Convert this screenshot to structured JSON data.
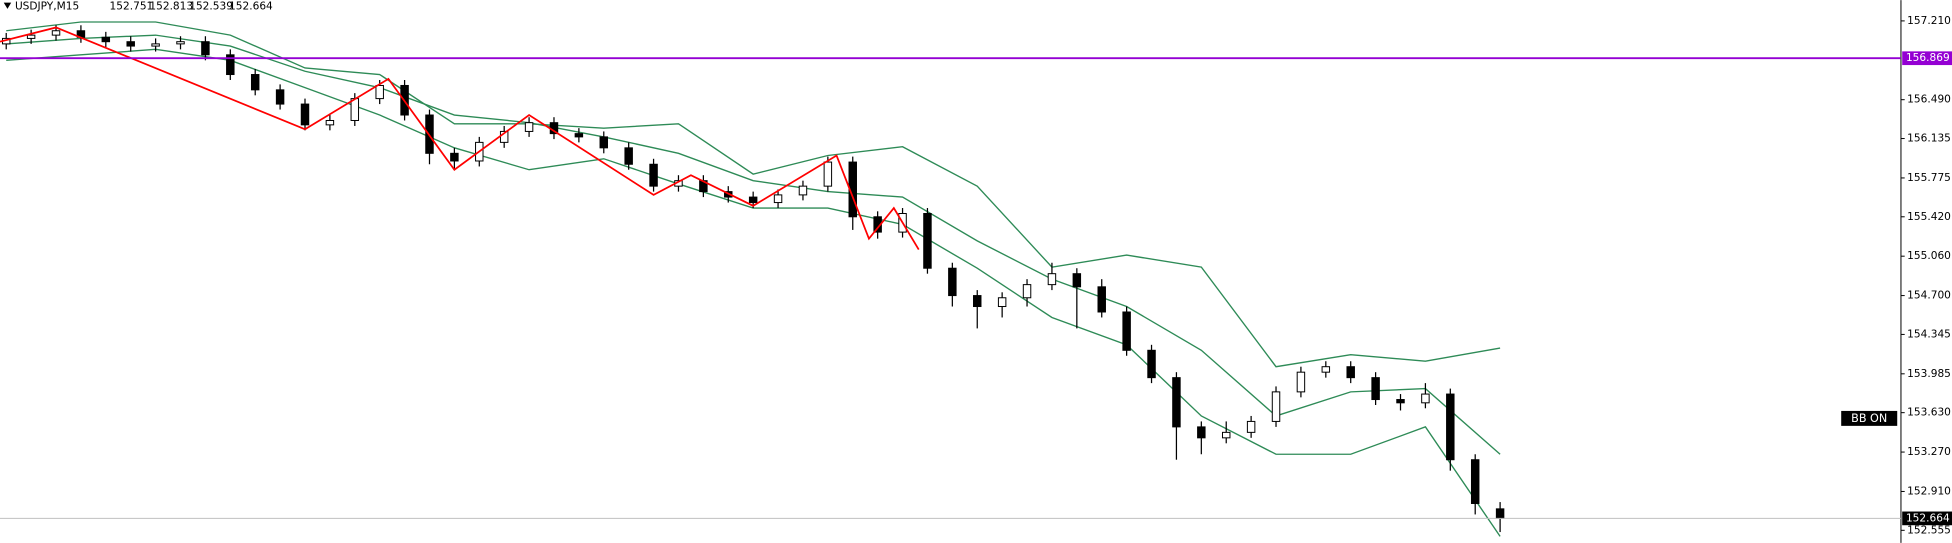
{
  "chart_data": {
    "type": "candlestick",
    "symbol": "USDJPY,M15",
    "open": [
      157.0,
      157.05,
      157.08,
      157.12,
      157.06,
      157.02,
      156.98,
      157.0,
      157.02,
      156.9,
      156.72,
      156.58,
      156.45,
      156.26,
      156.3,
      156.5,
      156.62,
      156.35,
      156.0,
      155.93,
      156.1,
      156.2,
      156.28,
      156.18,
      156.15,
      156.05,
      155.9,
      155.7,
      155.75,
      155.65,
      155.6,
      155.55,
      155.62,
      155.7,
      155.92,
      155.42,
      155.28,
      155.45,
      154.95,
      154.7,
      154.6,
      154.68,
      154.8,
      154.9,
      154.78,
      154.55,
      154.2,
      153.95,
      153.5,
      153.4,
      153.45,
      153.55,
      153.82,
      154.0,
      154.05,
      153.95,
      153.75,
      153.72,
      153.8,
      153.2,
      152.751
    ],
    "high": [
      157.1,
      157.13,
      157.17,
      157.17,
      157.11,
      157.07,
      157.05,
      157.07,
      157.07,
      156.95,
      156.77,
      156.63,
      156.5,
      156.35,
      156.55,
      156.67,
      156.67,
      156.4,
      156.05,
      156.15,
      156.25,
      156.33,
      156.33,
      156.23,
      156.2,
      156.1,
      155.95,
      155.8,
      155.8,
      155.7,
      155.65,
      155.67,
      155.75,
      155.97,
      155.97,
      155.47,
      155.5,
      155.5,
      155.0,
      154.75,
      154.73,
      154.85,
      155.0,
      154.95,
      154.85,
      154.6,
      154.25,
      154.0,
      153.55,
      153.55,
      153.6,
      153.87,
      154.05,
      154.1,
      154.1,
      154.0,
      153.8,
      153.9,
      153.85,
      153.25,
      152.813
    ],
    "low": [
      156.95,
      157.0,
      157.03,
      157.01,
      156.97,
      156.93,
      156.93,
      156.95,
      156.85,
      156.67,
      156.53,
      156.4,
      156.21,
      156.21,
      156.25,
      156.45,
      156.3,
      155.9,
      155.85,
      155.88,
      156.05,
      156.15,
      156.13,
      156.1,
      156.0,
      155.85,
      155.65,
      155.65,
      155.6,
      155.55,
      155.5,
      155.5,
      155.57,
      155.65,
      155.3,
      155.22,
      155.23,
      154.9,
      154.6,
      154.4,
      154.5,
      154.6,
      154.75,
      154.4,
      154.5,
      154.15,
      153.9,
      153.2,
      153.25,
      153.35,
      153.4,
      153.5,
      153.77,
      153.95,
      153.9,
      153.7,
      153.65,
      153.67,
      153.1,
      152.7,
      152.539
    ],
    "close": [
      157.05,
      157.08,
      157.12,
      157.06,
      157.02,
      156.98,
      157.0,
      157.02,
      156.9,
      156.72,
      156.58,
      156.45,
      156.26,
      156.3,
      156.5,
      156.62,
      156.35,
      156.0,
      155.93,
      156.1,
      156.2,
      156.28,
      156.18,
      156.15,
      156.05,
      155.9,
      155.7,
      155.75,
      155.65,
      155.6,
      155.55,
      155.62,
      155.7,
      155.92,
      155.42,
      155.28,
      155.45,
      154.95,
      154.7,
      154.6,
      154.68,
      154.8,
      154.9,
      154.78,
      154.55,
      154.2,
      153.95,
      153.5,
      153.4,
      153.45,
      153.55,
      153.82,
      154.0,
      154.05,
      153.95,
      153.75,
      153.72,
      153.8,
      153.2,
      152.8,
      152.664
    ],
    "bull_color": "#ffffff",
    "bear_color": "#000000",
    "bands": {
      "color": "#2e8b57",
      "x": [
        0,
        3,
        6,
        9,
        12,
        15,
        18,
        21,
        24,
        27,
        30,
        33,
        36,
        39,
        42,
        45,
        48,
        51,
        54,
        57,
        60
      ],
      "upper": [
        157.12,
        157.2,
        157.2,
        157.08,
        156.78,
        156.72,
        156.27,
        156.27,
        156.23,
        156.27,
        155.81,
        155.98,
        156.06,
        155.7,
        154.96,
        155.07,
        154.96,
        154.05,
        154.16,
        154.1,
        154.22
      ],
      "middle": [
        157.0,
        157.05,
        157.08,
        156.98,
        156.75,
        156.6,
        156.35,
        156.28,
        156.15,
        156.0,
        155.75,
        155.65,
        155.6,
        155.2,
        154.85,
        154.6,
        154.2,
        153.6,
        153.82,
        153.85,
        153.25
      ],
      "lower": [
        156.85,
        156.9,
        156.95,
        156.85,
        156.6,
        156.35,
        156.05,
        155.85,
        155.95,
        155.72,
        155.5,
        155.5,
        155.35,
        154.95,
        154.5,
        154.25,
        153.6,
        153.25,
        153.25,
        153.5,
        152.5
      ]
    },
    "zigzag": {
      "color": "#ff0000",
      "x": [
        -0.25,
        2,
        12,
        15.35,
        18,
        21,
        26,
        27.5,
        30,
        33.35,
        34.65,
        35.65,
        36.65
      ],
      "values": [
        157.02,
        157.15,
        156.22,
        156.68,
        155.85,
        156.35,
        155.62,
        155.8,
        155.52,
        155.98,
        155.22,
        155.5,
        155.12
      ]
    },
    "hline": {
      "value": 156.869,
      "color": "#9400d3"
    },
    "ylim": [
      152.44,
      157.4
    ],
    "yticks": [
      {
        "value": 157.21,
        "label": "157.210"
      },
      {
        "value": 156.49,
        "label": "156.490"
      },
      {
        "value": 156.135,
        "label": "156.135"
      },
      {
        "value": 155.775,
        "label": "155.775"
      },
      {
        "value": 155.42,
        "label": "155.420"
      },
      {
        "value": 155.06,
        "label": "155.060"
      },
      {
        "value": 154.7,
        "label": "154.700"
      },
      {
        "value": 154.345,
        "label": "154.345"
      },
      {
        "value": 153.985,
        "label": "153.985"
      },
      {
        "value": 153.63,
        "label": "153.630"
      },
      {
        "value": 153.27,
        "label": "153.270"
      },
      {
        "value": 152.91,
        "label": "152.910"
      },
      {
        "value": 152.555,
        "label": "152.555"
      }
    ],
    "annotation": "BB ON"
  }
}
